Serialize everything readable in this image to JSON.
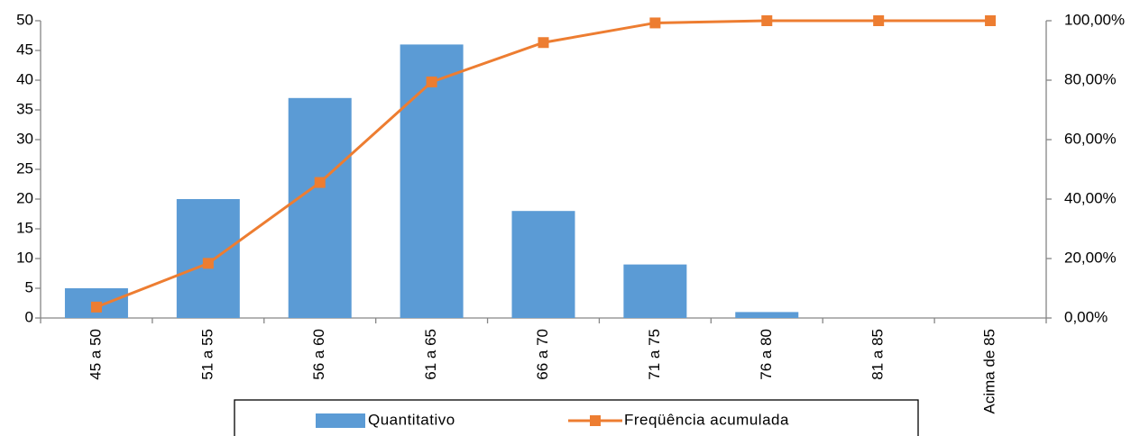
{
  "chart_data": {
    "type": "bar",
    "categories": [
      "45 a 50",
      "51 a 55",
      "56 a 60",
      "61 a 65",
      "66 a 70",
      "71 a 75",
      "76 a 80",
      "81 a 85",
      "Acima de 85"
    ],
    "series": [
      {
        "name": "Quantitativo",
        "color": "#5b9bd5",
        "type": "bar",
        "values": [
          5,
          20,
          37,
          46,
          18,
          9,
          1,
          0,
          0
        ]
      },
      {
        "name": "Freqüência acumulada",
        "color": "#ed7d31",
        "type": "line",
        "axis": "y2",
        "values": [
          3.68,
          18.38,
          45.59,
          79.41,
          92.65,
          99.26,
          100,
          100,
          100
        ]
      }
    ],
    "ylim": [
      0,
      50
    ],
    "yticks": [
      0,
      5,
      10,
      15,
      20,
      25,
      30,
      35,
      40,
      45,
      50
    ],
    "y2lim": [
      0,
      100
    ],
    "y2ticks": [
      {
        "value": 0,
        "label": "0,00%"
      },
      {
        "value": 20,
        "label": "20,00%"
      },
      {
        "value": 40,
        "label": "40,00%"
      },
      {
        "value": 60,
        "label": "60,00%"
      },
      {
        "value": 80,
        "label": "80,00%"
      },
      {
        "value": 100,
        "label": "100,00%"
      }
    ],
    "legend": "bottom"
  }
}
